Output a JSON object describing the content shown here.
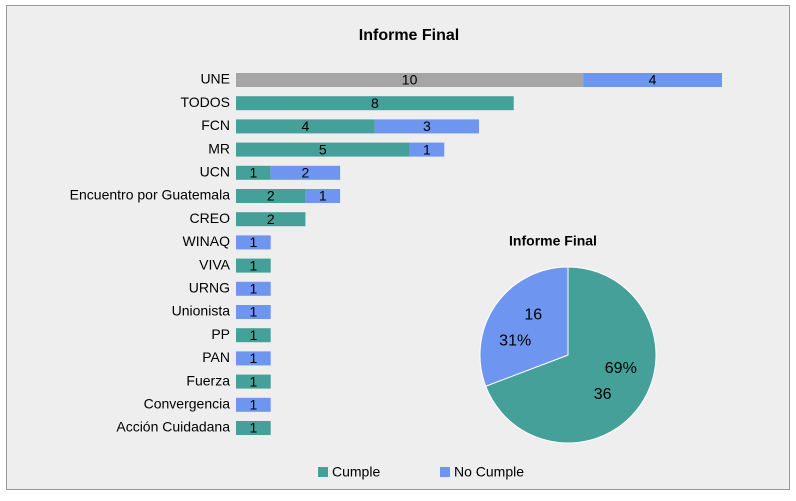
{
  "chart_data": [
    {
      "type": "bar",
      "orientation": "horizontal",
      "stacked": true,
      "title": "Informe Final",
      "categories": [
        "UNE",
        "TODOS",
        "FCN",
        "MR",
        "UCN",
        "Encuentro por Guatemala",
        "CREO",
        "WINAQ",
        "VIVA",
        "URNG",
        "Unionista",
        "PP",
        "PAN",
        "Fuerza",
        "Convergencia",
        "Acción Cuidadana"
      ],
      "series": [
        {
          "name": "Cumple",
          "color": "#45a09a",
          "point_colors": [
            "#a5a5a5",
            "#45a09a",
            "#45a09a",
            "#45a09a",
            "#45a09a",
            "#45a09a",
            "#45a09a",
            "#45a09a",
            "#45a09a",
            "#45a09a",
            "#45a09a",
            "#45a09a",
            "#45a09a",
            "#45a09a",
            "#45a09a",
            "#45a09a"
          ],
          "values": [
            10,
            8,
            4,
            5,
            1,
            2,
            2,
            null,
            1,
            null,
            null,
            1,
            null,
            1,
            null,
            1
          ]
        },
        {
          "name": "No Cumple",
          "color": "#6e96f0",
          "values": [
            4,
            null,
            3,
            1,
            2,
            1,
            null,
            1,
            null,
            1,
            1,
            null,
            1,
            null,
            1,
            null
          ]
        }
      ],
      "legend": "bottom"
    },
    {
      "type": "pie",
      "title": "Informe Final",
      "categories": [
        "Cumple",
        "No Cumple"
      ],
      "colors": [
        "#45a09a",
        "#6e96f0"
      ],
      "values": [
        36,
        16
      ],
      "percent_labels": [
        "69%",
        "31%"
      ]
    }
  ]
}
